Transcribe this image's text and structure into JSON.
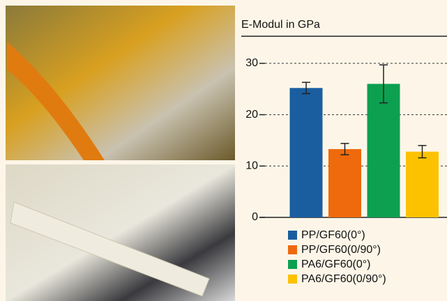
{
  "chart_data": {
    "type": "bar",
    "title": "E-Modul in GPa",
    "series": [
      {
        "name": "PP/GF60(0°)",
        "color": "#1a5ea0",
        "values": [
          25.2
        ],
        "errors": [
          1.1
        ]
      },
      {
        "name": "PP/GF60(0/90°)",
        "color": "#ee6a0c",
        "values": [
          13.3
        ],
        "errors": [
          1.1
        ]
      },
      {
        "name": "PA6/GF60(0°)",
        "color": "#0da050",
        "values": [
          26.0
        ],
        "errors": [
          3.7
        ]
      },
      {
        "name": "PA6/GF60(0/90°)",
        "color": "#fcc200",
        "values": [
          12.8
        ],
        "errors": [
          1.2
        ]
      }
    ],
    "ylim": [
      0,
      32
    ],
    "yticks": [
      0,
      10,
      20,
      30
    ],
    "grid": true
  }
}
